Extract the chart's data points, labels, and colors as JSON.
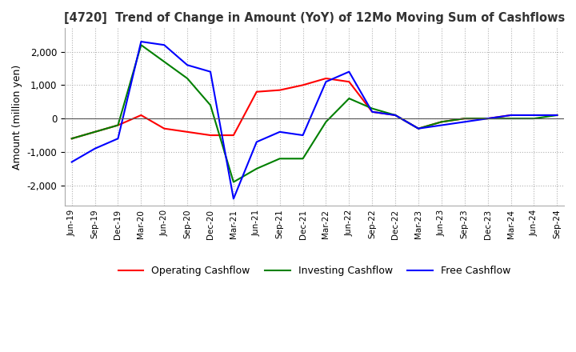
{
  "title": "[4720]  Trend of Change in Amount (YoY) of 12Mo Moving Sum of Cashflows",
  "ylabel": "Amount (million yen)",
  "background_color": "#ffffff",
  "grid_color": "#b0b0b0",
  "x_labels": [
    "Jun-19",
    "Sep-19",
    "Dec-19",
    "Mar-20",
    "Jun-20",
    "Sep-20",
    "Dec-20",
    "Mar-21",
    "Jun-21",
    "Sep-21",
    "Dec-21",
    "Mar-22",
    "Jun-22",
    "Sep-22",
    "Dec-22",
    "Mar-23",
    "Jun-23",
    "Sep-23",
    "Dec-23",
    "Mar-24",
    "Jun-24",
    "Sep-24"
  ],
  "operating_cashflow": [
    -600,
    -400,
    -200,
    100,
    -300,
    -400,
    -500,
    -500,
    800,
    850,
    1000,
    1200,
    1100,
    200,
    100,
    -300,
    -100,
    0,
    0,
    100,
    100,
    100
  ],
  "investing_cashflow": [
    -600,
    -400,
    -200,
    2200,
    1700,
    1200,
    400,
    -1900,
    -1500,
    -1200,
    -1200,
    -100,
    600,
    300,
    100,
    -300,
    -100,
    0,
    0,
    0,
    0,
    100
  ],
  "free_cashflow": [
    -1300,
    -900,
    -600,
    2300,
    2200,
    1600,
    1400,
    -2400,
    -700,
    -400,
    -500,
    1100,
    1400,
    200,
    100,
    -300,
    -200,
    -100,
    0,
    100,
    100,
    100
  ],
  "ylim": [
    -2600,
    2700
  ],
  "yticks": [
    -2000,
    -1000,
    0,
    1000,
    2000
  ],
  "operating_color": "#ff0000",
  "investing_color": "#008000",
  "free_color": "#0000ff",
  "line_width": 1.5
}
